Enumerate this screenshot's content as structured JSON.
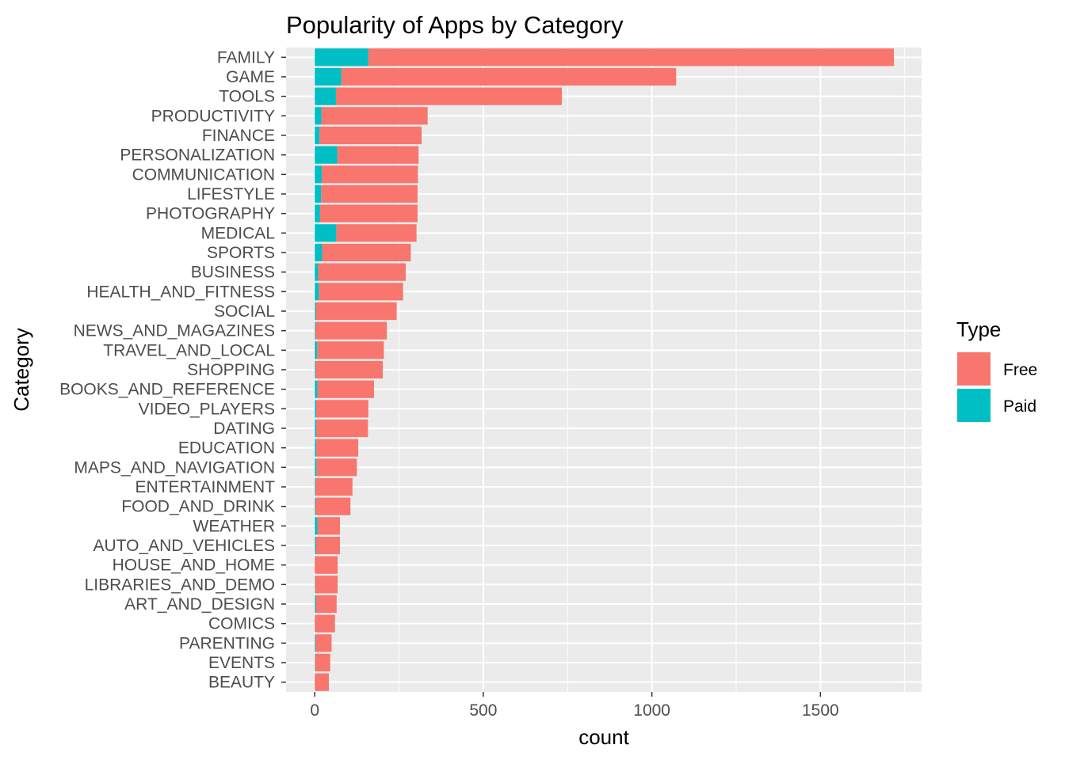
{
  "chart_data": {
    "type": "bar",
    "orientation": "horizontal",
    "stacked": true,
    "title": "Popularity of Apps by Category",
    "xlabel": "count",
    "ylabel": "Category",
    "xlim": [
      -85,
      1800
    ],
    "xticks": [
      0,
      500,
      1000,
      1500
    ],
    "xtick_labels": [
      "0",
      "500",
      "1000",
      "1500"
    ],
    "grid": true,
    "legend": {
      "title": "Type",
      "position": "right"
    },
    "categories": [
      "FAMILY",
      "GAME",
      "TOOLS",
      "PRODUCTIVITY",
      "FINANCE",
      "PERSONALIZATION",
      "COMMUNICATION",
      "LIFESTYLE",
      "PHOTOGRAPHY",
      "MEDICAL",
      "SPORTS",
      "BUSINESS",
      "HEALTH_AND_FITNESS",
      "SOCIAL",
      "NEWS_AND_MAGAZINES",
      "TRAVEL_AND_LOCAL",
      "SHOPPING",
      "BOOKS_AND_REFERENCE",
      "VIDEO_PLAYERS",
      "DATING",
      "EDUCATION",
      "MAPS_AND_NAVIGATION",
      "ENTERTAINMENT",
      "FOOD_AND_DRINK",
      "WEATHER",
      "AUTO_AND_VEHICLES",
      "HOUSE_AND_HOME",
      "LIBRARIES_AND_DEMO",
      "ART_AND_DESIGN",
      "COMICS",
      "PARENTING",
      "EVENTS",
      "BEAUTY"
    ],
    "series": [
      {
        "name": "Paid",
        "color": "#00BFC4",
        "values": [
          159,
          79,
          63,
          20,
          14,
          67,
          21,
          19,
          16,
          64,
          22,
          10,
          12,
          3,
          2,
          7,
          2,
          8,
          4,
          4,
          4,
          5,
          2,
          2,
          8,
          3,
          0,
          1,
          3,
          0,
          2,
          1,
          0
        ]
      },
      {
        "name": "Free",
        "color": "#F8766D",
        "values": [
          1559,
          993,
          670,
          315,
          303,
          241,
          285,
          286,
          289,
          238,
          263,
          260,
          250,
          240,
          212,
          198,
          200,
          168,
          155,
          154,
          125,
          120,
          110,
          104,
          67,
          72,
          68,
          67,
          62,
          60,
          48,
          45,
          42
        ]
      }
    ]
  }
}
